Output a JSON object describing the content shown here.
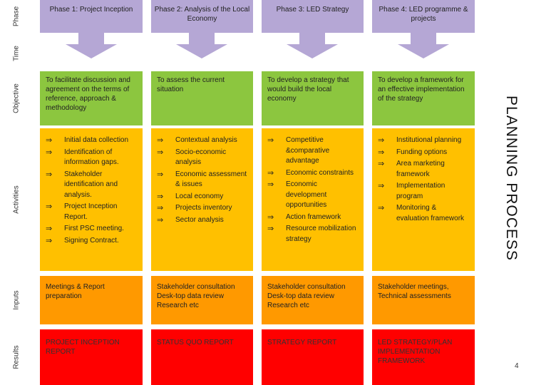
{
  "row_labels": {
    "phase": "Phase",
    "time": "Time",
    "objective": "Objective",
    "activities": "Activities",
    "inputs": "Inputs",
    "results": "Results"
  },
  "phases": [
    {
      "title": "Phase 1: Project Inception"
    },
    {
      "title": "Phase 2: Analysis of the Local Economy"
    },
    {
      "title": "Phase 3: LED Strategy"
    },
    {
      "title": "Phase 4: LED programme & projects"
    }
  ],
  "objectives": [
    "To facilitate discussion and agreement on the terms of reference, approach & methodology",
    "To assess the current situation",
    "To develop a strategy that would build the local economy",
    "To develop a framework for an effective implementation of the strategy"
  ],
  "bullet_symbol": "⇒",
  "activities": [
    [
      "Initial data collection",
      "Identification of information gaps.",
      "Stakeholder identification and analysis.",
      "Project Inception Report.",
      "First PSC meeting.",
      "Signing Contract."
    ],
    [
      "Contextual analysis",
      "Socio-economic analysis",
      " Economic assessment & issues",
      "Local economy",
      "Projects inventory",
      "Sector analysis"
    ],
    [
      "Competitive &comparative advantage",
      "Economic constraints",
      "Economic development opportunities",
      "Action framework",
      "Resource mobilization strategy"
    ],
    [
      "Institutional planning",
      "Funding options",
      "Area marketing framework",
      " Implementation program",
      "Monitoring & evaluation framework"
    ]
  ],
  "inputs": [
    [
      " Meetings & Report preparation"
    ],
    [
      "Stakeholder consultation",
      "Desk-top data review",
      "Research etc"
    ],
    [
      "Stakeholder consultation",
      "Desk-top data review",
      "Research etc"
    ],
    [
      "Stakeholder meetings, Technical assessments"
    ]
  ],
  "results": [
    "PROJECT INCEPTION REPORT",
    "STATUS QUO REPORT",
    "STRATEGY  REPORT",
    "LED STRATEGY/PLAN IMPLEMENTATION FRAMEWORK"
  ],
  "side_title": "PLANNING PROCESS",
  "page_number": "4",
  "colors": {
    "phase": "#b5a7d5",
    "objective": "#8cc63f",
    "activities": "#ffc000",
    "inputs": "#ff9900",
    "results": "#ff0000"
  }
}
